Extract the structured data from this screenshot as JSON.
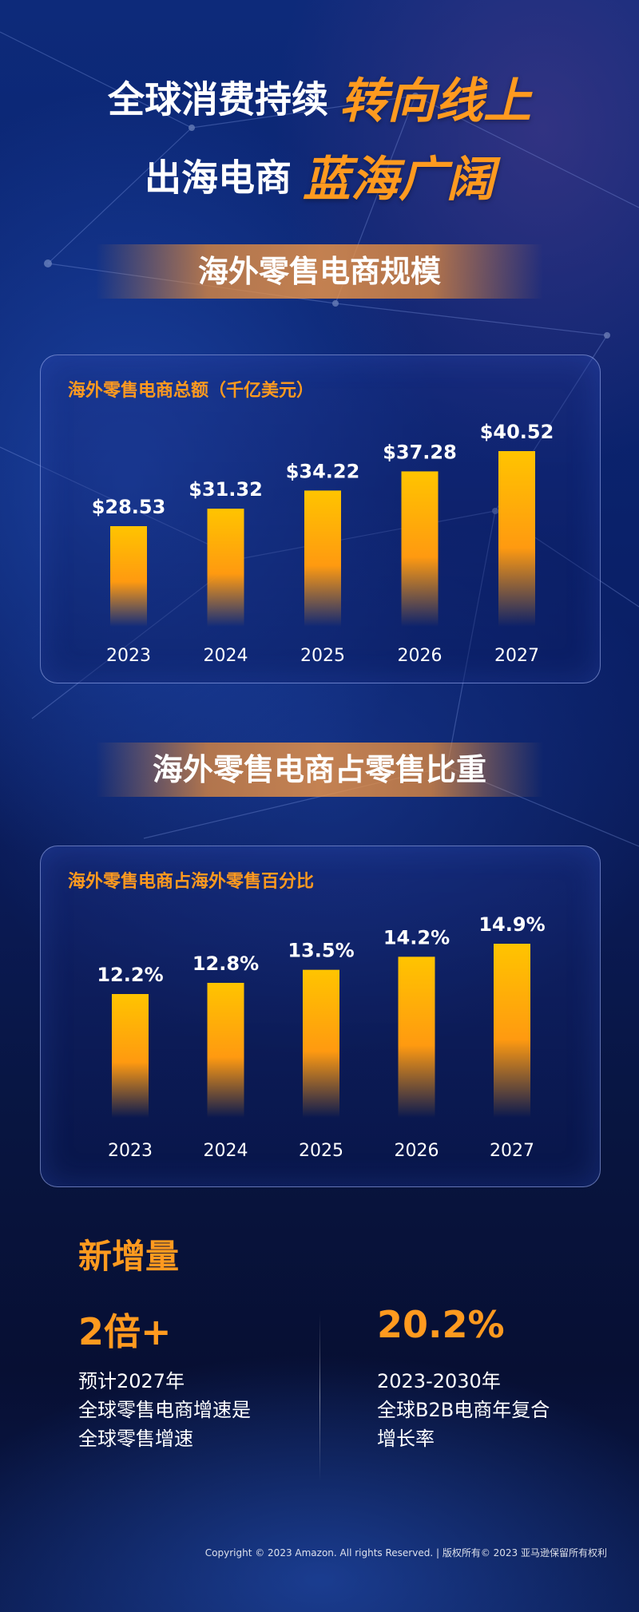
{
  "hero": {
    "line1_white": "全球消费持续",
    "line1_orange": "转向线上",
    "line2_white": "出海电商",
    "line2_orange": "蓝海广阔"
  },
  "section1": {
    "banner": "海外零售电商规模"
  },
  "section2": {
    "banner": "海外零售电商占零售比重"
  },
  "chart_data": [
    {
      "type": "bar",
      "title": "海外零售电商总额（千亿美元）",
      "categories": [
        "2023",
        "2024",
        "2025",
        "2026",
        "2027"
      ],
      "values": [
        28.53,
        31.32,
        34.22,
        37.28,
        40.52
      ],
      "labels": [
        "$28.53",
        "$31.32",
        "$34.22",
        "$37.28",
        "$40.52"
      ],
      "xlabel": "",
      "ylabel": "",
      "grid": false,
      "bar_color": "#ffb400"
    },
    {
      "type": "bar",
      "title": "海外零售电商占海外零售百分比",
      "categories": [
        "2023",
        "2024",
        "2025",
        "2026",
        "2027"
      ],
      "values": [
        12.2,
        12.8,
        13.5,
        14.2,
        14.9
      ],
      "labels": [
        "12.2%",
        "12.8%",
        "13.5%",
        "14.2%",
        "14.9%"
      ],
      "xlabel": "",
      "ylabel": "",
      "grid": false,
      "bar_color": "#ffb400"
    }
  ],
  "stats": {
    "heading": "新增量",
    "left": {
      "value": "2倍+",
      "lines": [
        "预计2027年",
        "全球零售电商增速是",
        "全球零售增速"
      ]
    },
    "right": {
      "value": "20.2%",
      "lines": [
        "2023-2030年",
        "全球B2B电商年复合",
        "增长率"
      ]
    }
  },
  "footer": "Copyright © 2023 Amazon. All rights Reserved. | 版权所有© 2023 亚马逊保留所有权利",
  "colors": {
    "accent": "#ff9a1f",
    "bar_top": "#ffc400",
    "bar_mid": "#ff9a10"
  }
}
